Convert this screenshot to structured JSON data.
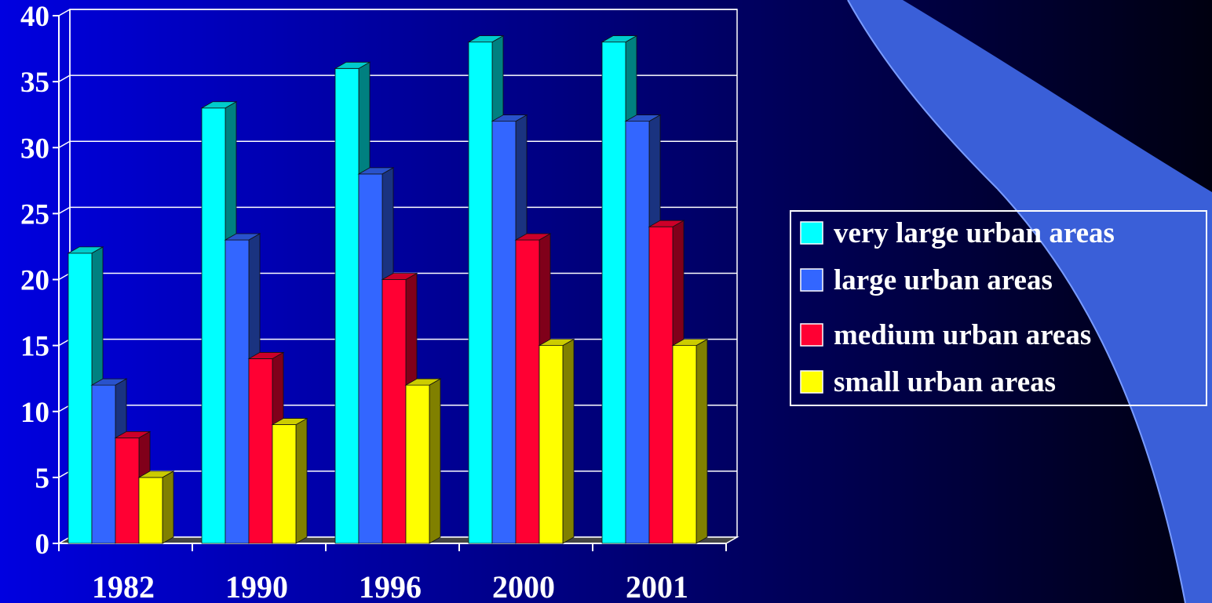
{
  "colors": {
    "background_left": "#0000e0",
    "background_right": "#000010",
    "swoosh": "#3a5fd8",
    "gridline": "#ffffff"
  },
  "chart_data": {
    "type": "bar",
    "style": "3d-clustered",
    "categories": [
      "1982",
      "1990",
      "1996",
      "2000",
      "2001"
    ],
    "series": [
      {
        "name": "very large urban areas",
        "color": "#00ffff",
        "values": [
          22,
          33,
          36,
          38,
          38
        ]
      },
      {
        "name": "large urban areas",
        "color": "#3366ff",
        "values": [
          12,
          23,
          28,
          32,
          32
        ]
      },
      {
        "name": "medium urban areas",
        "color": "#ff0033",
        "values": [
          8,
          14,
          20,
          23,
          24
        ]
      },
      {
        "name": "small urban areas",
        "color": "#ffff00",
        "values": [
          5,
          9,
          12,
          15,
          15
        ]
      }
    ],
    "y_ticks": [
      "0",
      "5",
      "10",
      "15",
      "20",
      "25",
      "30",
      "35",
      "40"
    ],
    "ylim": [
      0,
      40
    ],
    "grid": true,
    "legend_position": "right"
  }
}
